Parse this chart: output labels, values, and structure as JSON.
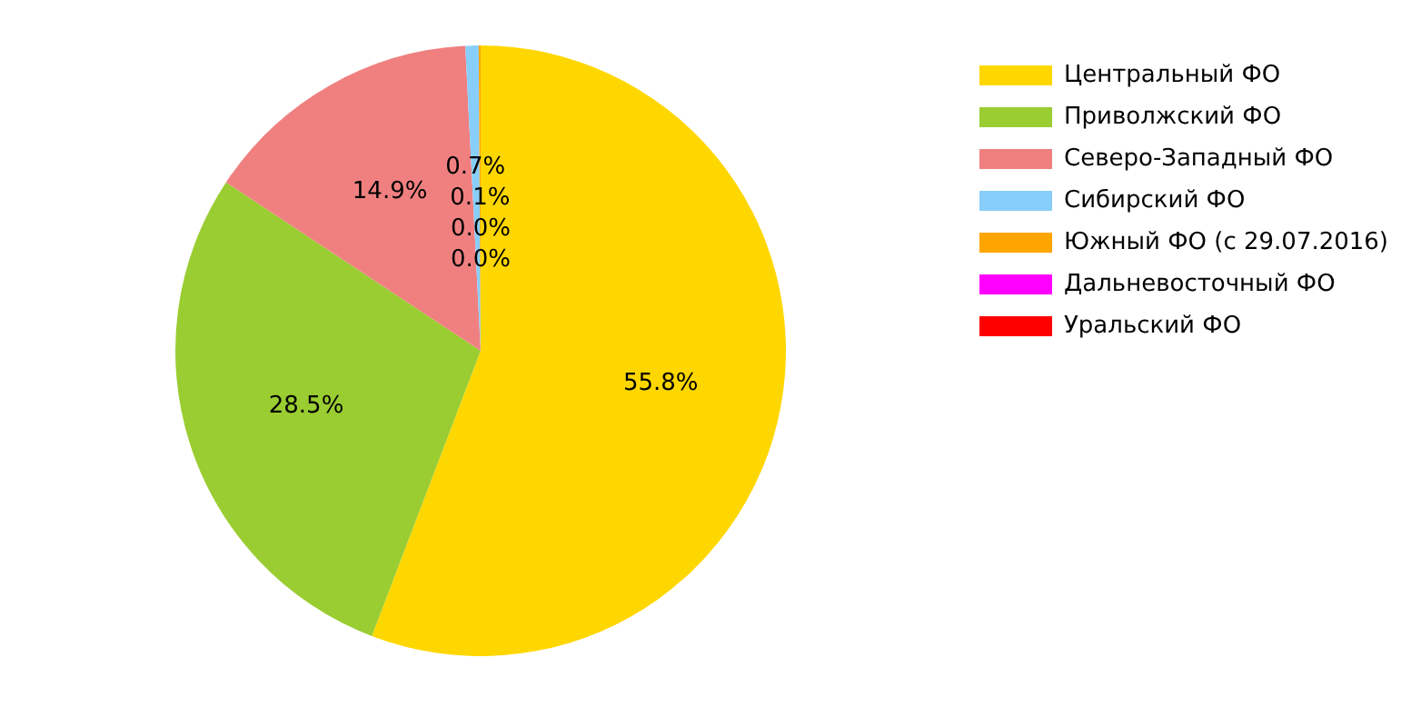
{
  "chart_data": {
    "type": "pie",
    "categories": [
      "Центральный ФО",
      "Приволжский ФО",
      "Северо-Западный ФО",
      "Сибирский ФО",
      "Южный ФО (с 29.07.2016)",
      "Дальневосточный ФО",
      "Уральский ФО"
    ],
    "values": [
      55.8,
      28.5,
      14.9,
      0.7,
      0.1,
      0.0,
      0.0
    ],
    "colors": [
      "#ffd700",
      "#9acd32",
      "#f08080",
      "#87cefa",
      "#ffa500",
      "#ff00ff",
      "#ff0000"
    ],
    "value_labels": [
      "55.8%",
      "28.5%",
      "14.9%",
      "0.7%",
      "0.1%",
      "0.0%",
      "0.0%"
    ],
    "legend": "top right"
  }
}
